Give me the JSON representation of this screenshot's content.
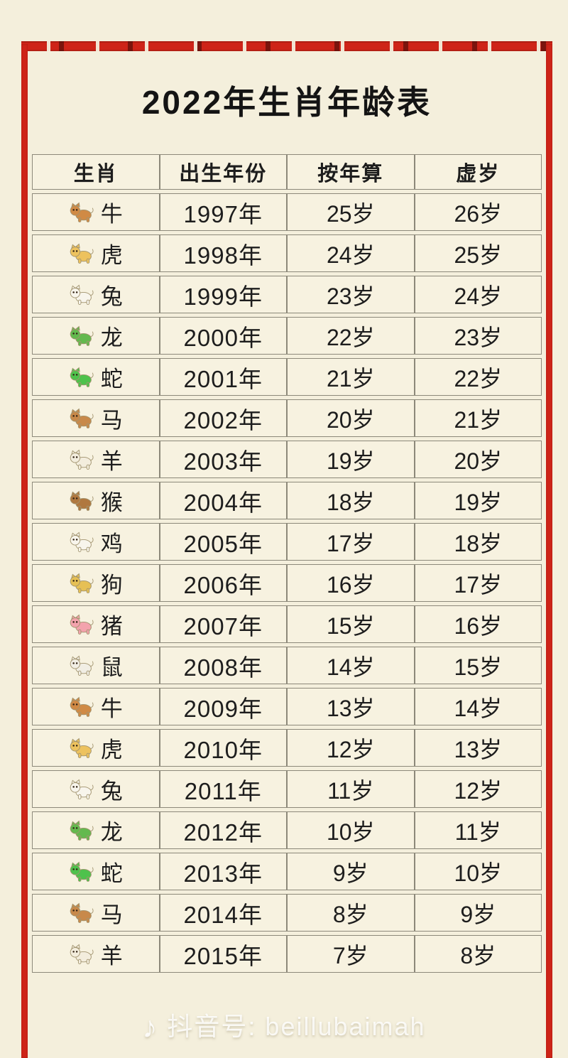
{
  "page": {
    "title": "2022年生肖年龄表",
    "watermark": {
      "icon": "douyin-note-icon",
      "label": "抖音号: beillubaimah"
    }
  },
  "colors": {
    "accent_red": "#ce2418",
    "background": "#f4efdc",
    "table_border": "#8d897a",
    "cell_background": "#f7f2e0",
    "text": "#1d1d1d",
    "watermark_text": "#ffffff"
  },
  "table": {
    "headers": [
      "生肖",
      "出生年份",
      "按年算",
      "虚岁"
    ],
    "rows": [
      {
        "zodiac": "牛",
        "emoji": "🐂",
        "icon_color": "#d08a45",
        "birth_year": "1997年",
        "age_by_year": "25岁",
        "nominal_age": "26岁"
      },
      {
        "zodiac": "虎",
        "emoji": "🐅",
        "icon_color": "#edc25e",
        "birth_year": "1998年",
        "age_by_year": "24岁",
        "nominal_age": "25岁"
      },
      {
        "zodiac": "兔",
        "emoji": "🐇",
        "icon_color": "#f8f5ec",
        "birth_year": "1999年",
        "age_by_year": "23岁",
        "nominal_age": "24岁"
      },
      {
        "zodiac": "龙",
        "emoji": "🐉",
        "icon_color": "#63b94e",
        "birth_year": "2000年",
        "age_by_year": "22岁",
        "nominal_age": "23岁"
      },
      {
        "zodiac": "蛇",
        "emoji": "🐍",
        "icon_color": "#4ec24c",
        "birth_year": "2001年",
        "age_by_year": "21岁",
        "nominal_age": "22岁"
      },
      {
        "zodiac": "马",
        "emoji": "🐎",
        "icon_color": "#c8894a",
        "birth_year": "2002年",
        "age_by_year": "20岁",
        "nominal_age": "21岁"
      },
      {
        "zodiac": "羊",
        "emoji": "🐏",
        "icon_color": "#f3eddd",
        "birth_year": "2003年",
        "age_by_year": "19岁",
        "nominal_age": "20岁"
      },
      {
        "zodiac": "猴",
        "emoji": "🐒",
        "icon_color": "#b0783f",
        "birth_year": "2004年",
        "age_by_year": "18岁",
        "nominal_age": "19岁"
      },
      {
        "zodiac": "鸡",
        "emoji": "🐓",
        "icon_color": "#f8f5ec",
        "birth_year": "2005年",
        "age_by_year": "17岁",
        "nominal_age": "18岁"
      },
      {
        "zodiac": "狗",
        "emoji": "🐕",
        "icon_color": "#e6c055",
        "birth_year": "2006年",
        "age_by_year": "16岁",
        "nominal_age": "17岁"
      },
      {
        "zodiac": "猪",
        "emoji": "🐷",
        "icon_color": "#f3a3ad",
        "birth_year": "2007年",
        "age_by_year": "15岁",
        "nominal_age": "16岁"
      },
      {
        "zodiac": "鼠",
        "emoji": "🐁",
        "icon_color": "#f1eee4",
        "birth_year": "2008年",
        "age_by_year": "14岁",
        "nominal_age": "15岁"
      },
      {
        "zodiac": "牛",
        "emoji": "🐂",
        "icon_color": "#d08a45",
        "birth_year": "2009年",
        "age_by_year": "13岁",
        "nominal_age": "14岁"
      },
      {
        "zodiac": "虎",
        "emoji": "🐅",
        "icon_color": "#edc25e",
        "birth_year": "2010年",
        "age_by_year": "12岁",
        "nominal_age": "13岁"
      },
      {
        "zodiac": "兔",
        "emoji": "🐇",
        "icon_color": "#f8f5ec",
        "birth_year": "2011年",
        "age_by_year": "11岁",
        "nominal_age": "12岁"
      },
      {
        "zodiac": "龙",
        "emoji": "🐉",
        "icon_color": "#63b94e",
        "birth_year": "2012年",
        "age_by_year": "10岁",
        "nominal_age": "11岁"
      },
      {
        "zodiac": "蛇",
        "emoji": "🐍",
        "icon_color": "#4ec24c",
        "birth_year": "2013年",
        "age_by_year": "9岁",
        "nominal_age": "10岁"
      },
      {
        "zodiac": "马",
        "emoji": "🐎",
        "icon_color": "#c8894a",
        "birth_year": "2014年",
        "age_by_year": "8岁",
        "nominal_age": "9岁"
      },
      {
        "zodiac": "羊",
        "emoji": "🐏",
        "icon_color": "#f3eddd",
        "birth_year": "2015年",
        "age_by_year": "7岁",
        "nominal_age": "8岁"
      }
    ]
  },
  "chart_data": {
    "type": "table",
    "title": "2022年生肖年龄表",
    "columns": [
      "生肖",
      "出生年份",
      "按年算",
      "虚岁"
    ],
    "rows": [
      [
        "牛",
        "1997年",
        "25岁",
        "26岁"
      ],
      [
        "虎",
        "1998年",
        "24岁",
        "25岁"
      ],
      [
        "兔",
        "1999年",
        "23岁",
        "24岁"
      ],
      [
        "龙",
        "2000年",
        "22岁",
        "23岁"
      ],
      [
        "蛇",
        "2001年",
        "21岁",
        "22岁"
      ],
      [
        "马",
        "2002年",
        "20岁",
        "21岁"
      ],
      [
        "羊",
        "2003年",
        "19岁",
        "20岁"
      ],
      [
        "猴",
        "2004年",
        "18岁",
        "19岁"
      ],
      [
        "鸡",
        "2005年",
        "17岁",
        "18岁"
      ],
      [
        "狗",
        "2006年",
        "16岁",
        "17岁"
      ],
      [
        "猪",
        "2007年",
        "15岁",
        "16岁"
      ],
      [
        "鼠",
        "2008年",
        "14岁",
        "15岁"
      ],
      [
        "牛",
        "2009年",
        "13岁",
        "14岁"
      ],
      [
        "虎",
        "2010年",
        "12岁",
        "13岁"
      ],
      [
        "兔",
        "2011年",
        "11岁",
        "12岁"
      ],
      [
        "龙",
        "2012年",
        "10岁",
        "11岁"
      ],
      [
        "蛇",
        "2013年",
        "9岁",
        "10岁"
      ],
      [
        "马",
        "2014年",
        "8岁",
        "9岁"
      ],
      [
        "羊",
        "2015年",
        "7岁",
        "8岁"
      ]
    ]
  }
}
